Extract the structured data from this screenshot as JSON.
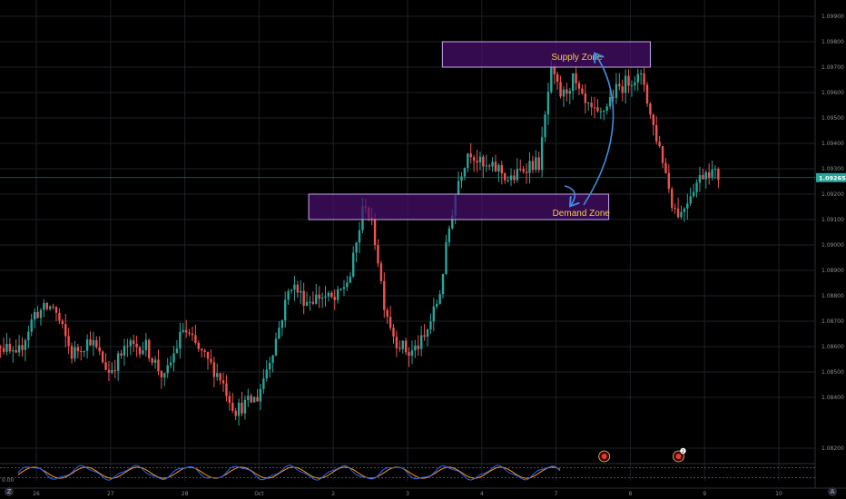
{
  "chart_data": {
    "type": "candlestick",
    "instrument_hint": "EURUSD-style hourly price chart",
    "title": "",
    "xlabel": "",
    "ylabel": "",
    "ylim": [
      1.0815,
      1.0995
    ],
    "x_tick_labels": [
      "26",
      "27",
      "28",
      "Oct",
      "2",
      "3",
      "4",
      "7",
      "8",
      "9",
      "10"
    ],
    "x_tick_sessions": [
      2,
      3,
      4,
      5,
      6,
      7,
      8,
      9,
      10,
      11,
      12
    ],
    "y_tick_labels": [
      "1.09900",
      "1.09800",
      "1.09700",
      "1.09600",
      "1.09500",
      "1.09400",
      "1.09300",
      "1.09200",
      "1.09100",
      "1.09000",
      "1.08900",
      "1.08800",
      "1.08700",
      "1.08600",
      "1.08500",
      "1.08400",
      "1.08200"
    ],
    "y_tick_values": [
      1.099,
      1.098,
      1.097,
      1.096,
      1.095,
      1.094,
      1.093,
      1.092,
      1.091,
      1.09,
      1.089,
      1.088,
      1.087,
      1.086,
      1.085,
      1.084,
      1.082
    ],
    "current_price": "1.09265",
    "current_price_value": 1.09265,
    "colors": {
      "up": "#26a69a",
      "down": "#ef5350",
      "zone_fill": "#4a0f6e",
      "zone_border": "#c9a8ea",
      "zone_text": "#f5c84c",
      "arrow": "#3d8fe0",
      "price_line": "#26a69a",
      "grid": "#1c1f27",
      "osc_fast": "#2962ff",
      "osc_slow": "#ff9800"
    },
    "zones": [
      {
        "name": "Supply Zone",
        "label": "Supply Zone",
        "price_top": 1.098,
        "price_bottom": 1.097,
        "session_start": 7.2,
        "session_end": 10.0
      },
      {
        "name": "Demand Zone",
        "label": "Demand Zone",
        "price_top": 1.092,
        "price_bottom": 1.091,
        "session_start": 5.4,
        "session_end": 9.44
      }
    ],
    "path_keypoints": [
      {
        "t": 1.0,
        "p": 1.084
      },
      {
        "t": 1.25,
        "p": 1.0862
      },
      {
        "t": 1.5,
        "p": 1.0855
      },
      {
        "t": 1.75,
        "p": 1.0873
      },
      {
        "t": 2.0,
        "p": 1.0876
      },
      {
        "t": 2.25,
        "p": 1.0857
      },
      {
        "t": 2.5,
        "p": 1.0863
      },
      {
        "t": 2.75,
        "p": 1.085
      },
      {
        "t": 3.0,
        "p": 1.086
      },
      {
        "t": 3.25,
        "p": 1.086
      },
      {
        "t": 3.5,
        "p": 1.0847
      },
      {
        "t": 3.75,
        "p": 1.0867
      },
      {
        "t": 4.0,
        "p": 1.0857
      },
      {
        "t": 4.25,
        "p": 1.0848
      },
      {
        "t": 4.45,
        "p": 1.0835
      },
      {
        "t": 4.75,
        "p": 1.084
      },
      {
        "t": 5.0,
        "p": 1.0863
      },
      {
        "t": 5.2,
        "p": 1.0885
      },
      {
        "t": 5.4,
        "p": 1.0878
      },
      {
        "t": 5.6,
        "p": 1.088
      },
      {
        "t": 5.8,
        "p": 1.0878
      },
      {
        "t": 6.0,
        "p": 1.0888
      },
      {
        "t": 6.2,
        "p": 1.0918
      },
      {
        "t": 6.35,
        "p": 1.09
      },
      {
        "t": 6.45,
        "p": 1.0878
      },
      {
        "t": 6.6,
        "p": 1.0863
      },
      {
        "t": 6.8,
        "p": 1.0857
      },
      {
        "t": 7.0,
        "p": 1.0863
      },
      {
        "t": 7.2,
        "p": 1.088
      },
      {
        "t": 7.35,
        "p": 1.091
      },
      {
        "t": 7.45,
        "p": 1.0925
      },
      {
        "t": 7.6,
        "p": 1.0938
      },
      {
        "t": 7.8,
        "p": 1.093
      },
      {
        "t": 8.0,
        "p": 1.093
      },
      {
        "t": 8.15,
        "p": 1.0925
      },
      {
        "t": 8.4,
        "p": 1.0932
      },
      {
        "t": 8.55,
        "p": 1.0932
      },
      {
        "t": 8.7,
        "p": 1.0968
      },
      {
        "t": 8.85,
        "p": 1.0958
      },
      {
        "t": 9.0,
        "p": 1.0965
      },
      {
        "t": 9.15,
        "p": 1.0955
      },
      {
        "t": 9.35,
        "p": 1.095
      },
      {
        "t": 9.55,
        "p": 1.096
      },
      {
        "t": 9.8,
        "p": 1.0966
      },
      {
        "t": 9.95,
        "p": 1.0965
      },
      {
        "t": 10.05,
        "p": 1.095
      },
      {
        "t": 10.2,
        "p": 1.0935
      },
      {
        "t": 10.35,
        "p": 1.0915
      },
      {
        "t": 10.45,
        "p": 1.0912
      },
      {
        "t": 10.6,
        "p": 1.0922
      },
      {
        "t": 10.8,
        "p": 1.093
      },
      {
        "t": 10.95,
        "p": 1.0927
      }
    ],
    "candles_per_session": 24,
    "oscillator": {
      "name": "",
      "min": 0,
      "max": 100,
      "bands": [
        20,
        80
      ],
      "zero_label": "0.00"
    },
    "event_markers": [
      {
        "session": 9.6,
        "badge": ""
      },
      {
        "session": 10.6,
        "badge": "2"
      }
    ]
  },
  "controls": {
    "zoom_corner_left": "Z",
    "zoom_corner_right": "A"
  }
}
